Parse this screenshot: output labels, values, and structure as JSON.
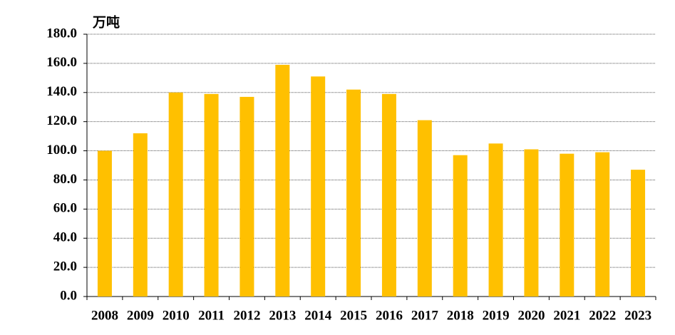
{
  "chart_data": {
    "type": "bar",
    "unit_label": "万吨",
    "categories": [
      "2008",
      "2009",
      "2010",
      "2011",
      "2012",
      "2013",
      "2014",
      "2015",
      "2016",
      "2017",
      "2018",
      "2019",
      "2020",
      "2021",
      "2022",
      "2023"
    ],
    "values": [
      100,
      112,
      140,
      139,
      137,
      159,
      151,
      142,
      139,
      121,
      97,
      105,
      101,
      98,
      99,
      87
    ],
    "color": "#ffc000",
    "ylim": [
      0,
      180
    ],
    "yticks": [
      {
        "value": 0,
        "label": "0.0"
      },
      {
        "value": 20,
        "label": "20.0"
      },
      {
        "value": 40,
        "label": "40.0"
      },
      {
        "value": 60,
        "label": "60.0"
      },
      {
        "value": 80,
        "label": "80.0"
      },
      {
        "value": 100,
        "label": "100.0"
      },
      {
        "value": 120,
        "label": "120.0"
      },
      {
        "value": 140,
        "label": "140.0"
      },
      {
        "value": 160,
        "label": "160.0"
      },
      {
        "value": 180,
        "label": "180.0"
      }
    ],
    "grid": true
  }
}
